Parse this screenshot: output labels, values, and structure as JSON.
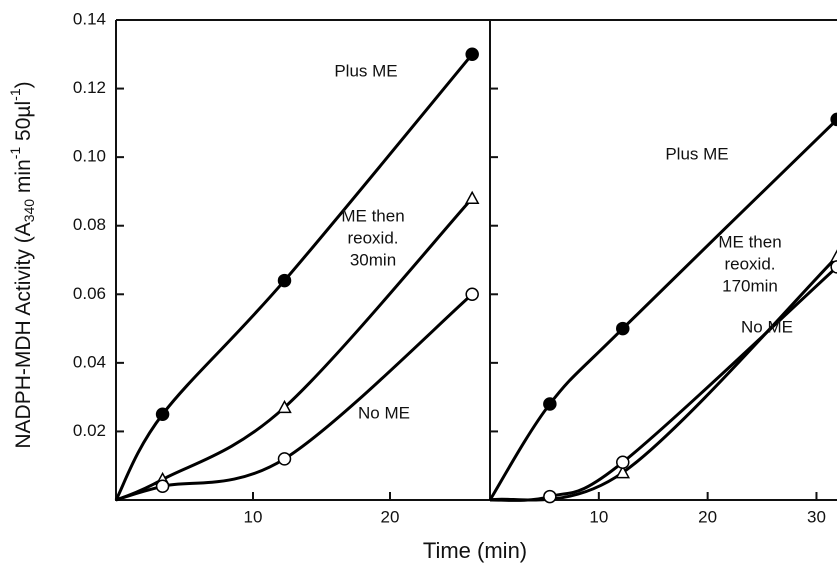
{
  "chart_data": [
    {
      "type": "line",
      "ylabel_parts": [
        "NADPH-MDH Activity (A",
        "340",
        " min",
        "-1",
        " 50µl",
        "-1",
        ")"
      ],
      "xlabel": "Time (min)",
      "xlim": [
        0,
        27.3
      ],
      "ylim": [
        0,
        0.14
      ],
      "xticks": [
        10,
        20
      ],
      "yticks": [
        0.02,
        0.04,
        0.06,
        0.08,
        {
          "value": 0.1,
          "label": "0.10"
        },
        0.12,
        0.14
      ],
      "x": [
        0,
        3.4,
        12.3,
        26
      ],
      "series": [
        {
          "label_lines": [
            "Plus ME"
          ],
          "marker": "filled-circle",
          "color": "#000000",
          "values": [
            0,
            0.025,
            0.064,
            0.13
          ]
        },
        {
          "label_lines": [
            "ME then",
            "reoxid.",
            "30min"
          ],
          "marker": "open-triangle",
          "color": "#000000",
          "values": [
            0,
            0.006,
            0.027,
            0.088
          ]
        },
        {
          "label_lines": [
            "No ME"
          ],
          "marker": "open-circle",
          "color": "#000000",
          "values": [
            0,
            0.004,
            0.012,
            0.06
          ]
        }
      ]
    },
    {
      "type": "line",
      "xlim": [
        0,
        34
      ],
      "ylim": [
        0,
        0.14
      ],
      "xticks": [
        10,
        20,
        30
      ],
      "yticks": [
        0.02,
        0.04,
        0.06,
        0.08,
        0.1,
        0.12,
        0.14
      ],
      "x": [
        0,
        5.5,
        12.2,
        31.9
      ],
      "series": [
        {
          "label_lines": [
            "Plus ME"
          ],
          "marker": "filled-circle",
          "color": "#000000",
          "values": [
            0,
            0.028,
            0.05,
            0.111
          ]
        },
        {
          "label_lines": [
            "ME then",
            "reoxid.",
            "170min"
          ],
          "marker": "open-triangle",
          "color": "#000000",
          "x": [
            0,
            12.2,
            31.9
          ],
          "values": [
            0,
            0.008,
            0.071
          ]
        },
        {
          "label_lines": [
            "No ME"
          ],
          "marker": "open-circle",
          "color": "#000000",
          "values": [
            0,
            0.001,
            0.011,
            0.068
          ]
        }
      ]
    }
  ]
}
